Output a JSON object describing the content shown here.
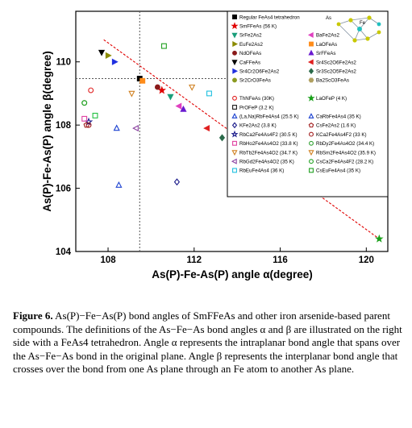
{
  "chart_data": {
    "type": "scatter",
    "xlabel": "As(P)-Fe-As(P) angle α(degree)",
    "ylabel": "As(P)-Fe-As(P) angle β(degree)",
    "xlim": [
      106.5,
      121
    ],
    "ylim": [
      104,
      111.6
    ],
    "xticks": [
      108,
      112,
      116,
      120
    ],
    "yticks": [
      104,
      106,
      108,
      110
    ],
    "reference_lines": {
      "x": 109.47,
      "y": 109.47
    },
    "fit_line": {
      "from": [
        107.8,
        110.7
      ],
      "to": [
        120.6,
        104.4
      ]
    },
    "series": [
      {
        "name": "Regular FeAs4 tetrahedron",
        "marker": "square",
        "color": "#000000",
        "filled": true,
        "points": [
          [
            109.47,
            109.47
          ]
        ]
      },
      {
        "name": "SmFFeAs (56 K)",
        "marker": "star",
        "color": "#e00000",
        "filled": true,
        "points": [
          [
            110.5,
            109.1
          ]
        ]
      },
      {
        "name": "SrFe2As2",
        "marker": "tri-down",
        "color": "#1a9e7a",
        "filled": true,
        "points": [
          [
            110.9,
            108.9
          ]
        ]
      },
      {
        "name": "BaFe2As2",
        "marker": "tri-left",
        "color": "#e040c0",
        "filled": true,
        "points": [
          [
            111.3,
            108.6
          ]
        ]
      },
      {
        "name": "EuFe2As2",
        "marker": "tri-right",
        "color": "#8b8b00",
        "filled": true,
        "points": [
          [
            108.0,
            110.2
          ]
        ]
      },
      {
        "name": "LaOFeAs",
        "marker": "square",
        "color": "#ff8c1a",
        "filled": true,
        "points": [
          [
            109.6,
            109.4
          ]
        ]
      },
      {
        "name": "NdOFeAs",
        "marker": "circle",
        "color": "#8a1a1a",
        "filled": true,
        "points": [
          [
            110.3,
            109.2
          ]
        ]
      },
      {
        "name": "SrFFeAs",
        "marker": "tri-up",
        "color": "#6a1ad0",
        "filled": true,
        "points": [
          [
            111.5,
            108.5
          ]
        ]
      },
      {
        "name": "CaFFeAs",
        "marker": "tri-down",
        "color": "#000000",
        "filled": true,
        "points": [
          [
            107.7,
            110.3
          ]
        ]
      },
      {
        "name": "Sr4Sc2O6Fe2As2",
        "marker": "tri-left",
        "color": "#e02020",
        "filled": true,
        "points": [
          [
            112.6,
            107.9
          ]
        ]
      },
      {
        "name": "Sr4Cr2O6Fe2As2",
        "marker": "tri-right",
        "color": "#2030e0",
        "filled": true,
        "points": [
          [
            108.3,
            110.0
          ]
        ]
      },
      {
        "name": "Sr3Sc2O5Fe2As2",
        "marker": "diamond",
        "color": "#2a6a4a",
        "filled": true,
        "points": [
          [
            113.3,
            107.6
          ]
        ]
      },
      {
        "name": "Sr2CrO3FeAs",
        "marker": "circle",
        "color": "#8a9a20",
        "filled": true,
        "points": [
          [
            115.4,
            106.6
          ]
        ]
      },
      {
        "name": "Ba2ScO3FeAs",
        "marker": "hexagon",
        "color": "#b0a060",
        "filled": true,
        "points": [
          [
            115.5,
            106.6
          ]
        ]
      },
      {
        "name": "ThNFeAs (30K)",
        "marker": "circle",
        "color": "#e02020",
        "filled": false,
        "points": [
          [
            107.2,
            109.1
          ]
        ]
      },
      {
        "name": "LaOFeP (4 K)",
        "marker": "star",
        "color": "#1aa01a",
        "filled": true,
        "points": [
          [
            120.6,
            104.4
          ]
        ]
      },
      {
        "name": "PrOFeP (3.2 K)",
        "marker": "square",
        "color": "#1a1a1a",
        "filled": false,
        "points": [
          [
            114.2,
            107.1
          ]
        ]
      },
      {
        "name": "(La,Na)RbFe4As4 (25.5 K)",
        "marker": "tri-up",
        "color": "#1a40d0",
        "filled": false,
        "points": [
          [
            108.4,
            107.9
          ]
        ]
      },
      {
        "name": "CaRbFe4As4 (35 K)",
        "marker": "tri-up",
        "color": "#1a40d0",
        "filled": false,
        "points": [
          [
            108.5,
            106.1
          ]
        ]
      },
      {
        "name": "KFe2As2 (3.8 K)",
        "marker": "diamond",
        "color": "#1a1a8a",
        "filled": false,
        "points": [
          [
            111.2,
            106.2
          ]
        ]
      },
      {
        "name": "CsFe2As2 (1.6 K)",
        "marker": "pentagon",
        "color": "#a01a1a",
        "filled": false,
        "points": [
          [
            107.0,
            108.0
          ]
        ]
      },
      {
        "name": "RbCa2Fe4As4F2 (30.5 K)",
        "marker": "star",
        "color": "#1a1a8a",
        "filled": false,
        "points": [
          [
            107.1,
            108.1
          ]
        ]
      },
      {
        "name": "KCa2Fe4As4F2 (33 K)",
        "marker": "circle",
        "color": "#a01a1a",
        "filled": false,
        "points": [
          [
            107.1,
            108.0
          ]
        ]
      },
      {
        "name": "RbHo2Fe4As4O2 (33.8 K)",
        "marker": "square",
        "color": "#e040a0",
        "filled": false,
        "points": [
          [
            106.9,
            108.2
          ]
        ]
      },
      {
        "name": "RbDy2Fe4As4O2 (34.4 K)",
        "marker": "circle",
        "color": "#30a030",
        "filled": false,
        "points": [
          [
            106.9,
            108.7
          ]
        ]
      },
      {
        "name": "RbTb2Fe4As4O2 (34.7 K)",
        "marker": "tri-down",
        "color": "#d08020",
        "filled": false,
        "points": [
          [
            111.9,
            109.2
          ]
        ]
      },
      {
        "name": "RbSm2Fe4As4O2 (35.9 K)",
        "marker": "tri-down",
        "color": "#d08020",
        "filled": false,
        "points": [
          [
            109.1,
            109.0
          ]
        ]
      },
      {
        "name": "RbGd2Fe4As4O2 (35 K)",
        "marker": "tri-left",
        "color": "#8a40a0",
        "filled": false,
        "points": [
          [
            109.3,
            107.9
          ]
        ]
      },
      {
        "name": "CsCa2Fe4As4F2 (28.2 K)",
        "marker": "circle",
        "color": "#20a020",
        "filled": false,
        "points": [
          [
            106.9,
            108.7
          ]
        ]
      },
      {
        "name": "RbEuFe4As4 (36 K)",
        "marker": "square",
        "color": "#20c0e0",
        "filled": false,
        "points": [
          [
            112.7,
            109.0
          ]
        ]
      },
      {
        "name": "CsEuFe4As4 (35 K)",
        "marker": "square",
        "color": "#20a020",
        "filled": false,
        "points": [
          [
            110.6,
            110.5
          ]
        ]
      },
      {
        "name": "",
        "marker": "square",
        "color": "#20c040",
        "filled": false,
        "points": [
          [
            107.4,
            108.3
          ]
        ]
      }
    ],
    "legend_placement": "top-right",
    "legend_rows": [
      [
        {
          "name": "Regular FeAs4 tetrahedron",
          "marker": "square",
          "color": "#000000",
          "filled": true
        }
      ],
      [
        {
          "name": "SmFFeAs (56 K)",
          "marker": "star",
          "color": "#e00000",
          "filled": true
        }
      ],
      [
        {
          "name": "SrFe2As2",
          "marker": "tri-down",
          "color": "#1a9e7a",
          "filled": true
        },
        {
          "name": "BaFe2As2",
          "marker": "tri-left",
          "color": "#e040c0",
          "filled": true
        }
      ],
      [
        {
          "name": "EuFe2As2",
          "marker": "tri-right",
          "color": "#8b8b00",
          "filled": true
        },
        {
          "name": "LaOFeAs",
          "marker": "square",
          "color": "#ff8c1a",
          "filled": true
        }
      ],
      [
        {
          "name": "NdOFeAs",
          "marker": "circle",
          "color": "#8a1a1a",
          "filled": true
        },
        {
          "name": "SrFFeAs",
          "marker": "tri-up",
          "color": "#6a1ad0",
          "filled": true
        }
      ],
      [
        {
          "name": "CaFFeAs",
          "marker": "tri-down",
          "color": "#000000",
          "filled": true
        },
        {
          "name": "Sr4Sc2O6Fe2As2",
          "marker": "tri-left",
          "color": "#e02020",
          "filled": true
        }
      ],
      [
        {
          "name": "Sr4Cr2O6Fe2As2",
          "marker": "tri-right",
          "color": "#2030e0",
          "filled": true
        },
        {
          "name": "Sr3Sc2O5Fe2As2",
          "marker": "diamond",
          "color": "#2a6a4a",
          "filled": true
        }
      ],
      [
        {
          "name": "Sr2CrO3FeAs",
          "marker": "circle",
          "color": "#8a9a20",
          "filled": true
        },
        {
          "name": "Ba2ScO3FeAs",
          "marker": "hexagon",
          "color": "#b0a060",
          "filled": true
        }
      ],
      [],
      [
        {
          "name": "ThNFeAs (30K)",
          "marker": "circle",
          "color": "#e02020",
          "filled": false
        },
        {
          "name": "LaOFeP (4 K)",
          "marker": "star",
          "color": "#1aa01a",
          "filled": true
        }
      ],
      [
        {
          "name": "PrOFeP (3.2 K)",
          "marker": "square",
          "color": "#1a1a1a",
          "filled": false
        }
      ],
      [
        {
          "name": "(La,Na)RbFe4As4 (25.5 K)",
          "marker": "tri-up",
          "color": "#1a40d0",
          "filled": false
        },
        {
          "name": "CaRbFe4As4 (35 K)",
          "marker": "tri-up",
          "color": "#1a40d0",
          "filled": false
        }
      ],
      [
        {
          "name": "KFe2As2 (3.8 K)",
          "marker": "diamond",
          "color": "#1a1a8a",
          "filled": false
        },
        {
          "name": "CsFe2As2 (1.6 K)",
          "marker": "pentagon",
          "color": "#a01a1a",
          "filled": false
        }
      ],
      [
        {
          "name": "RbCa2Fe4As4F2 (30.5 K)",
          "marker": "star",
          "color": "#1a1a8a",
          "filled": false
        },
        {
          "name": "KCa2Fe4As4F2 (33 K)",
          "marker": "circle",
          "color": "#a01a1a",
          "filled": false
        }
      ],
      [
        {
          "name": "RbHo2Fe4As4O2 (33.8 K)",
          "marker": "square",
          "color": "#e040a0",
          "filled": false
        },
        {
          "name": "RbDy2Fe4As4O2 (34.4 K)",
          "marker": "circle",
          "color": "#30a030",
          "filled": false
        }
      ],
      [
        {
          "name": "RbTb2Fe4As4O2 (34.7 K)",
          "marker": "tri-down",
          "color": "#d08020",
          "filled": false
        },
        {
          "name": "RbSm2Fe4As4O2 (35.9 K)",
          "marker": "tri-down",
          "color": "#d08020",
          "filled": false
        }
      ],
      [
        {
          "name": "RbGd2Fe4As4O2 (35 K)",
          "marker": "tri-left",
          "color": "#8a40a0",
          "filled": false
        },
        {
          "name": "CsCa2Fe4As4F2 (28.2 K)",
          "marker": "circle",
          "color": "#20a020",
          "filled": false
        }
      ],
      [
        {
          "name": "RbEuFe4As4 (36 K)",
          "marker": "square",
          "color": "#20c0e0",
          "filled": false
        },
        {
          "name": "CsEuFe4As4 (35 K)",
          "marker": "square",
          "color": "#20a020",
          "filled": false
        }
      ]
    ],
    "inset_labels": [
      "As",
      "Fe"
    ],
    "colors": {
      "fit_line": "#e00000",
      "reference_lines": "#555555"
    }
  },
  "caption": {
    "figure_label": "Figure 6.",
    "text": "As(P)−Fe−As(P) bond angles of SmFFeAs and other iron arsenide-based parent compounds. The definitions of the As−Fe−As bond angles α and β are illustrated on the right side with a FeAs4 tetrahedron. Angle α represents the intraplanar bond angle that spans over the As−Fe−As bond in the original plane. Angle β represents the interplanar bond angle that crosses over the bond from one As plane through an Fe atom to another As plane."
  }
}
